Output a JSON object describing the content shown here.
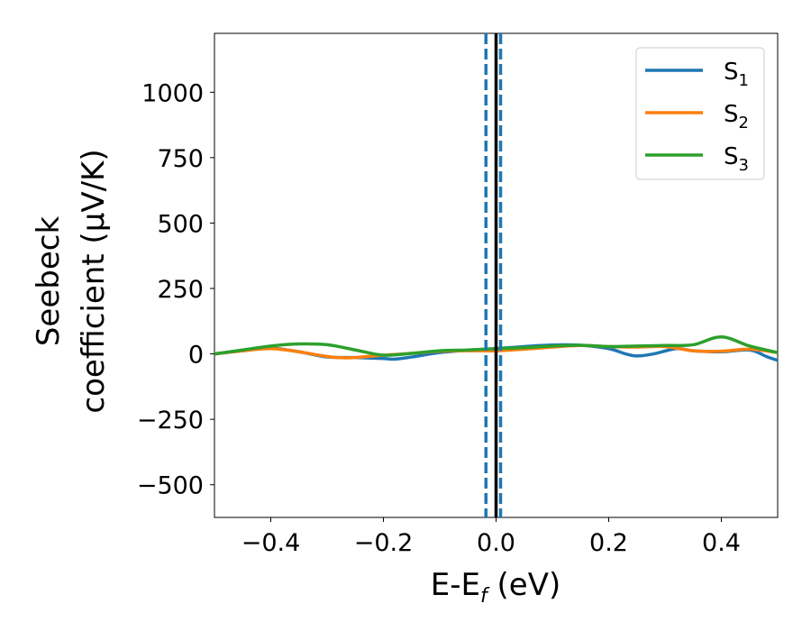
{
  "chart_data": {
    "type": "line",
    "xlabel_parts": {
      "base": "E-E",
      "sub": "f",
      "rest": " (eV)"
    },
    "ylabel_lines": [
      "Seebeck",
      "coefficient  (μV/K)"
    ],
    "xlim": [
      -0.5,
      0.5
    ],
    "ylim": [
      -625,
      1225
    ],
    "xticks": [
      -0.4,
      -0.2,
      0.0,
      0.2,
      0.4
    ],
    "xtick_labels": [
      "−0.4",
      "−0.2",
      "0.0",
      "0.2",
      "0.4"
    ],
    "yticks": [
      -500,
      -250,
      0,
      250,
      500,
      750,
      1000
    ],
    "ytick_labels": [
      "−500",
      "−250",
      "0",
      "250",
      "500",
      "750",
      "1000"
    ],
    "grid": false,
    "legend_position": "top-right",
    "vertical_lines": [
      {
        "x": 0.0,
        "color": "#000000",
        "style": "solid"
      },
      {
        "x": -0.018,
        "color": "#1f77b4",
        "style": "dashed"
      },
      {
        "x": 0.008,
        "color": "#1f77b4",
        "style": "dashed"
      }
    ],
    "series": [
      {
        "name": "S",
        "sub": "1",
        "color": "#1f77b4",
        "x": [
          -0.5,
          -0.45,
          -0.4,
          -0.35,
          -0.3,
          -0.25,
          -0.2,
          -0.18,
          -0.15,
          -0.1,
          -0.05,
          0.0,
          0.05,
          0.1,
          0.15,
          0.2,
          0.23,
          0.25,
          0.28,
          0.32,
          0.35,
          0.4,
          0.45,
          0.48,
          0.5
        ],
        "y": [
          0,
          12,
          22,
          8,
          -12,
          -14,
          -18,
          -20,
          -12,
          5,
          14,
          20,
          28,
          34,
          33,
          20,
          0,
          -8,
          0,
          20,
          12,
          8,
          15,
          -10,
          -25
        ]
      },
      {
        "name": "S",
        "sub": "2",
        "color": "#ff7f0e",
        "x": [
          -0.5,
          -0.45,
          -0.4,
          -0.35,
          -0.3,
          -0.27,
          -0.25,
          -0.2,
          -0.15,
          -0.1,
          -0.05,
          0.0,
          0.05,
          0.1,
          0.15,
          0.2,
          0.25,
          0.3,
          0.35,
          0.4,
          0.45,
          0.5
        ],
        "y": [
          0,
          12,
          20,
          8,
          -10,
          -15,
          -14,
          -5,
          2,
          10,
          12,
          12,
          18,
          26,
          32,
          28,
          26,
          28,
          12,
          10,
          18,
          5
        ]
      },
      {
        "name": "S",
        "sub": "3",
        "color": "#2ca02c",
        "x": [
          -0.5,
          -0.45,
          -0.4,
          -0.35,
          -0.3,
          -0.25,
          -0.2,
          -0.15,
          -0.1,
          -0.05,
          0.0,
          0.05,
          0.1,
          0.15,
          0.2,
          0.25,
          0.3,
          0.35,
          0.4,
          0.45,
          0.5
        ],
        "y": [
          0,
          15,
          30,
          38,
          35,
          15,
          -5,
          2,
          12,
          15,
          20,
          24,
          30,
          33,
          28,
          30,
          32,
          35,
          65,
          30,
          5
        ]
      }
    ]
  }
}
